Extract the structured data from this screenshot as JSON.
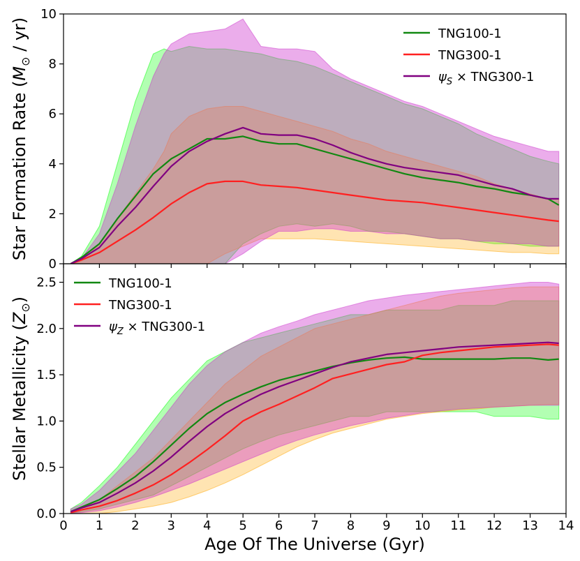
{
  "chart_data": [
    {
      "type": "line",
      "panel": "top",
      "xlabel": "",
      "ylabel": "Star Formation Rate",
      "ylabel_unit_prefix": "M",
      "ylabel_unit_sub": "⊙",
      "ylabel_unit_suffix": " / yr",
      "xlim": [
        0,
        14
      ],
      "ylim": [
        0,
        10
      ],
      "yticks": [
        0,
        2,
        4,
        6,
        8,
        10
      ],
      "ytick_labels": [
        "0",
        "2",
        "4",
        "6",
        "8",
        "10"
      ],
      "legend_position": "top-right",
      "bands": [
        {
          "name": "TNG100-1 range",
          "color": "#00ff00",
          "opacity": 0.3,
          "x": [
            0.2,
            0.5,
            1,
            1.5,
            2,
            2.5,
            2.8,
            3,
            3.5,
            4,
            4.5,
            5,
            5.5,
            6,
            6.5,
            7,
            7.5,
            8,
            8.5,
            9,
            9.5,
            10,
            10.5,
            11,
            11.5,
            12,
            12.5,
            13,
            13.5,
            13.8
          ],
          "upper": [
            0,
            0.3,
            1.5,
            4,
            6.5,
            8.4,
            8.6,
            8.5,
            8.7,
            8.6,
            8.6,
            8.5,
            8.4,
            8.2,
            8.1,
            7.9,
            7.6,
            7.3,
            7,
            6.7,
            6.4,
            6.2,
            5.9,
            5.6,
            5.2,
            4.9,
            4.6,
            4.3,
            4.1,
            4.0
          ],
          "lower": [
            0,
            0,
            0,
            0,
            0,
            0,
            0,
            0,
            0,
            0,
            0,
            0.8,
            1.2,
            1.5,
            1.6,
            1.5,
            1.6,
            1.5,
            1.3,
            1.3,
            1.2,
            1.1,
            1.0,
            1.0,
            0.9,
            0.8,
            0.8,
            0.7,
            0.7,
            0.7
          ]
        },
        {
          "name": "TNG300-1 range",
          "color": "#ffa500",
          "opacity": 0.3,
          "x": [
            0.2,
            0.5,
            1,
            1.5,
            2,
            2.5,
            2.8,
            3,
            3.5,
            4,
            4.5,
            5,
            5.5,
            6,
            6.5,
            7,
            7.5,
            8,
            8.5,
            9,
            9.5,
            10,
            10.5,
            11,
            11.5,
            12,
            12.5,
            13,
            13.5,
            13.8
          ],
          "upper": [
            0,
            0.1,
            0.8,
            1.8,
            2.8,
            3.8,
            4.5,
            5.2,
            5.9,
            6.2,
            6.3,
            6.3,
            6.1,
            5.9,
            5.7,
            5.5,
            5.3,
            5.0,
            4.8,
            4.5,
            4.3,
            4.1,
            3.9,
            3.7,
            3.5,
            3.2,
            3.0,
            2.8,
            2.6,
            2.6
          ],
          "lower": [
            0,
            0,
            0,
            0,
            0,
            0,
            0,
            0,
            0,
            0,
            0.4,
            0.7,
            1.0,
            1.0,
            1.0,
            1.0,
            0.95,
            0.9,
            0.85,
            0.8,
            0.75,
            0.7,
            0.65,
            0.6,
            0.55,
            0.5,
            0.45,
            0.45,
            0.4,
            0.4
          ]
        },
        {
          "name": "ψS × TNG300-1 range",
          "color": "#cc33cc",
          "opacity": 0.4,
          "x": [
            0.2,
            0.5,
            1,
            1.5,
            2,
            2.5,
            2.8,
            3,
            3.5,
            4,
            4.5,
            5,
            5.5,
            6,
            6.5,
            7,
            7.5,
            8,
            8.5,
            9,
            9.5,
            10,
            10.5,
            11,
            11.5,
            12,
            12.5,
            13,
            13.5,
            13.8
          ],
          "upper": [
            0,
            0.2,
            1.2,
            3.2,
            5.5,
            7.5,
            8.4,
            8.8,
            9.2,
            9.3,
            9.4,
            9.8,
            8.7,
            8.6,
            8.6,
            8.5,
            7.8,
            7.4,
            7.1,
            6.8,
            6.5,
            6.3,
            6.0,
            5.7,
            5.4,
            5.1,
            4.9,
            4.7,
            4.5,
            4.5
          ],
          "lower": [
            0,
            0,
            0,
            0,
            0,
            0,
            0,
            0,
            0,
            0,
            0,
            0.4,
            0.9,
            1.3,
            1.3,
            1.4,
            1.4,
            1.3,
            1.3,
            1.2,
            1.2,
            1.1,
            1.0,
            1.0,
            0.9,
            0.9,
            0.8,
            0.8,
            0.7,
            0.7
          ]
        }
      ],
      "series": [
        {
          "name": "TNG100-1",
          "color": "#118811",
          "x": [
            0.2,
            0.5,
            1,
            1.5,
            2,
            2.5,
            3,
            3.5,
            4,
            4.5,
            5,
            5.5,
            6,
            6.5,
            7,
            7.5,
            8,
            8.5,
            9,
            9.5,
            10,
            10.5,
            11,
            11.5,
            12,
            12.5,
            13,
            13.5,
            13.8
          ],
          "values": [
            0,
            0.25,
            0.8,
            1.8,
            2.7,
            3.6,
            4.2,
            4.6,
            5.0,
            5.0,
            5.1,
            4.9,
            4.8,
            4.8,
            4.6,
            4.4,
            4.2,
            4.0,
            3.8,
            3.6,
            3.45,
            3.35,
            3.25,
            3.1,
            3.0,
            2.85,
            2.75,
            2.6,
            2.35
          ]
        },
        {
          "name": "TNG300-1",
          "color": "#ff2020",
          "x": [
            0.2,
            0.5,
            1,
            1.5,
            2,
            2.5,
            3,
            3.5,
            4,
            4.5,
            5,
            5.5,
            6,
            6.5,
            7,
            7.5,
            8,
            8.5,
            9,
            9.5,
            10,
            10.5,
            11,
            11.5,
            12,
            12.5,
            13,
            13.5,
            13.8
          ],
          "values": [
            0,
            0.15,
            0.45,
            0.9,
            1.35,
            1.85,
            2.4,
            2.85,
            3.2,
            3.3,
            3.3,
            3.15,
            3.1,
            3.05,
            2.95,
            2.85,
            2.75,
            2.65,
            2.55,
            2.5,
            2.45,
            2.35,
            2.25,
            2.15,
            2.05,
            1.95,
            1.85,
            1.75,
            1.7
          ]
        },
        {
          "name": "ψS × TNG300-1",
          "color": "#800080",
          "x": [
            0.2,
            0.5,
            1,
            1.5,
            2,
            2.5,
            3,
            3.5,
            4,
            4.5,
            5,
            5.5,
            6,
            6.5,
            7,
            7.5,
            8,
            8.5,
            9,
            9.5,
            10,
            10.5,
            11,
            11.5,
            12,
            12.5,
            13,
            13.5,
            13.8
          ],
          "values": [
            0,
            0.2,
            0.65,
            1.5,
            2.25,
            3.1,
            3.9,
            4.5,
            4.9,
            5.2,
            5.45,
            5.2,
            5.15,
            5.15,
            5.0,
            4.75,
            4.45,
            4.2,
            4.0,
            3.85,
            3.75,
            3.65,
            3.55,
            3.35,
            3.15,
            3.0,
            2.75,
            2.6,
            2.6
          ]
        }
      ],
      "legend": [
        {
          "label": "TNG100-1",
          "color": "#118811"
        },
        {
          "label": "TNG300-1",
          "color": "#ff2020"
        },
        {
          "label_greek": "ψ",
          "label_sub": "S",
          "label_rest": " × TNG300-1",
          "color": "#800080"
        }
      ]
    },
    {
      "type": "line",
      "panel": "bottom",
      "xlabel": "Age Of The Universe (Gyr)",
      "ylabel": "Stellar Metallicity",
      "ylabel_unit_prefix": "Z",
      "ylabel_unit_sub": "⊙",
      "ylabel_unit_suffix": "",
      "xlim": [
        0,
        14
      ],
      "ylim": [
        0,
        2.7
      ],
      "xticks": [
        0,
        1,
        2,
        3,
        4,
        5,
        6,
        7,
        8,
        9,
        10,
        11,
        12,
        13,
        14
      ],
      "xtick_labels": [
        "0",
        "1",
        "2",
        "3",
        "4",
        "5",
        "6",
        "7",
        "8",
        "9",
        "10",
        "11",
        "12",
        "13",
        "14"
      ],
      "yticks": [
        0,
        0.5,
        1.0,
        1.5,
        2.0,
        2.5
      ],
      "ytick_labels": [
        "0.0",
        "0.5",
        "1.0",
        "1.5",
        "2.0",
        "2.5"
      ],
      "legend_position": "top-left",
      "bands": [
        {
          "name": "TNG100-1 range",
          "color": "#00ff00",
          "opacity": 0.3,
          "x": [
            0.2,
            0.5,
            1,
            1.5,
            2,
            2.5,
            3,
            3.5,
            4,
            4.5,
            5,
            5.5,
            6,
            6.5,
            7,
            7.5,
            8,
            8.5,
            9,
            9.5,
            10,
            10.5,
            11,
            11.5,
            12,
            12.5,
            13,
            13.5,
            13.8
          ],
          "upper": [
            0.05,
            0.12,
            0.3,
            0.5,
            0.75,
            1.0,
            1.25,
            1.45,
            1.65,
            1.75,
            1.85,
            1.9,
            1.95,
            2.0,
            2.05,
            2.1,
            2.15,
            2.15,
            2.2,
            2.2,
            2.2,
            2.2,
            2.25,
            2.25,
            2.25,
            2.3,
            2.3,
            2.3,
            2.3
          ],
          "lower": [
            0,
            0.02,
            0.05,
            0.1,
            0.15,
            0.2,
            0.3,
            0.4,
            0.5,
            0.6,
            0.7,
            0.78,
            0.85,
            0.9,
            0.95,
            1.0,
            1.05,
            1.05,
            1.1,
            1.1,
            1.1,
            1.1,
            1.1,
            1.1,
            1.05,
            1.05,
            1.05,
            1.02,
            1.02
          ]
        },
        {
          "name": "TNG300-1 range",
          "color": "#ffa500",
          "opacity": 0.3,
          "x": [
            0.2,
            0.5,
            1,
            1.5,
            2,
            2.5,
            3,
            3.5,
            4,
            4.5,
            5,
            5.5,
            6,
            6.5,
            7,
            7.5,
            8,
            8.5,
            9,
            9.5,
            10,
            10.5,
            11,
            11.5,
            12,
            12.5,
            13,
            13.5,
            13.8
          ],
          "upper": [
            0.02,
            0.06,
            0.15,
            0.3,
            0.45,
            0.6,
            0.8,
            1.0,
            1.2,
            1.4,
            1.55,
            1.7,
            1.8,
            1.9,
            2.0,
            2.05,
            2.1,
            2.15,
            2.2,
            2.25,
            2.3,
            2.35,
            2.38,
            2.4,
            2.42,
            2.44,
            2.45,
            2.45,
            2.45
          ],
          "lower": [
            0,
            0,
            0,
            0.02,
            0.05,
            0.08,
            0.12,
            0.18,
            0.25,
            0.33,
            0.42,
            0.52,
            0.62,
            0.72,
            0.8,
            0.87,
            0.92,
            0.97,
            1.02,
            1.05,
            1.08,
            1.1,
            1.12,
            1.13,
            1.15,
            1.16,
            1.17,
            1.18,
            1.18
          ]
        },
        {
          "name": "ψZ × TNG300-1 range",
          "color": "#cc33cc",
          "opacity": 0.4,
          "x": [
            0.2,
            0.5,
            1,
            1.5,
            2,
            2.5,
            3,
            3.5,
            4,
            4.5,
            5,
            5.5,
            6,
            6.5,
            7,
            7.5,
            8,
            8.5,
            9,
            9.5,
            10,
            10.5,
            11,
            11.5,
            12,
            12.5,
            13,
            13.5,
            13.8
          ],
          "upper": [
            0.05,
            0.1,
            0.25,
            0.45,
            0.65,
            0.9,
            1.15,
            1.4,
            1.6,
            1.75,
            1.85,
            1.95,
            2.02,
            2.08,
            2.15,
            2.2,
            2.25,
            2.3,
            2.33,
            2.36,
            2.38,
            2.4,
            2.42,
            2.44,
            2.46,
            2.48,
            2.5,
            2.5,
            2.48
          ],
          "lower": [
            0,
            0.01,
            0.03,
            0.07,
            0.12,
            0.18,
            0.25,
            0.32,
            0.4,
            0.48,
            0.56,
            0.64,
            0.72,
            0.79,
            0.85,
            0.9,
            0.95,
            0.99,
            1.03,
            1.06,
            1.09,
            1.11,
            1.13,
            1.14,
            1.15,
            1.16,
            1.17,
            1.17,
            1.17
          ]
        }
      ],
      "series": [
        {
          "name": "TNG100-1",
          "color": "#118811",
          "x": [
            0.2,
            0.5,
            1,
            1.5,
            2,
            2.5,
            3,
            3.5,
            4,
            4.5,
            5,
            5.5,
            6,
            6.5,
            7,
            7.5,
            8,
            8.5,
            9,
            9.5,
            10,
            10.5,
            11,
            11.5,
            12,
            12.5,
            13,
            13.5,
            13.8
          ],
          "values": [
            0.02,
            0.07,
            0.15,
            0.27,
            0.4,
            0.56,
            0.74,
            0.92,
            1.08,
            1.2,
            1.29,
            1.37,
            1.44,
            1.49,
            1.54,
            1.59,
            1.63,
            1.66,
            1.68,
            1.69,
            1.67,
            1.67,
            1.67,
            1.67,
            1.67,
            1.68,
            1.68,
            1.66,
            1.67
          ]
        },
        {
          "name": "TNG300-1",
          "color": "#ff2020",
          "x": [
            0.2,
            0.5,
            1,
            1.5,
            2,
            2.5,
            3,
            3.5,
            4,
            4.5,
            5,
            5.5,
            6,
            6.5,
            7,
            7.5,
            8,
            8.5,
            9,
            9.5,
            10,
            10.5,
            11,
            11.5,
            12,
            12.5,
            13,
            13.5,
            13.8
          ],
          "values": [
            0.01,
            0.04,
            0.08,
            0.14,
            0.22,
            0.31,
            0.42,
            0.55,
            0.69,
            0.84,
            1.0,
            1.1,
            1.18,
            1.27,
            1.36,
            1.46,
            1.51,
            1.56,
            1.61,
            1.64,
            1.71,
            1.74,
            1.76,
            1.78,
            1.8,
            1.81,
            1.82,
            1.83,
            1.82
          ]
        },
        {
          "name": "ψZ × TNG300-1",
          "color": "#800080",
          "x": [
            0.2,
            0.5,
            1,
            1.5,
            2,
            2.5,
            3,
            3.5,
            4,
            4.5,
            5,
            5.5,
            6,
            6.5,
            7,
            7.5,
            8,
            8.5,
            9,
            9.5,
            10,
            10.5,
            11,
            11.5,
            12,
            12.5,
            13,
            13.5,
            13.8
          ],
          "values": [
            0.02,
            0.06,
            0.12,
            0.22,
            0.33,
            0.46,
            0.61,
            0.78,
            0.94,
            1.08,
            1.19,
            1.29,
            1.37,
            1.44,
            1.51,
            1.58,
            1.64,
            1.68,
            1.72,
            1.74,
            1.76,
            1.78,
            1.8,
            1.81,
            1.82,
            1.83,
            1.84,
            1.85,
            1.84
          ]
        }
      ],
      "legend": [
        {
          "label": "TNG100-1",
          "color": "#118811"
        },
        {
          "label": "TNG300-1",
          "color": "#ff2020"
        },
        {
          "label_greek": "ψ",
          "label_sub": "Z",
          "label_rest": " × TNG300-1",
          "color": "#800080"
        }
      ]
    }
  ]
}
